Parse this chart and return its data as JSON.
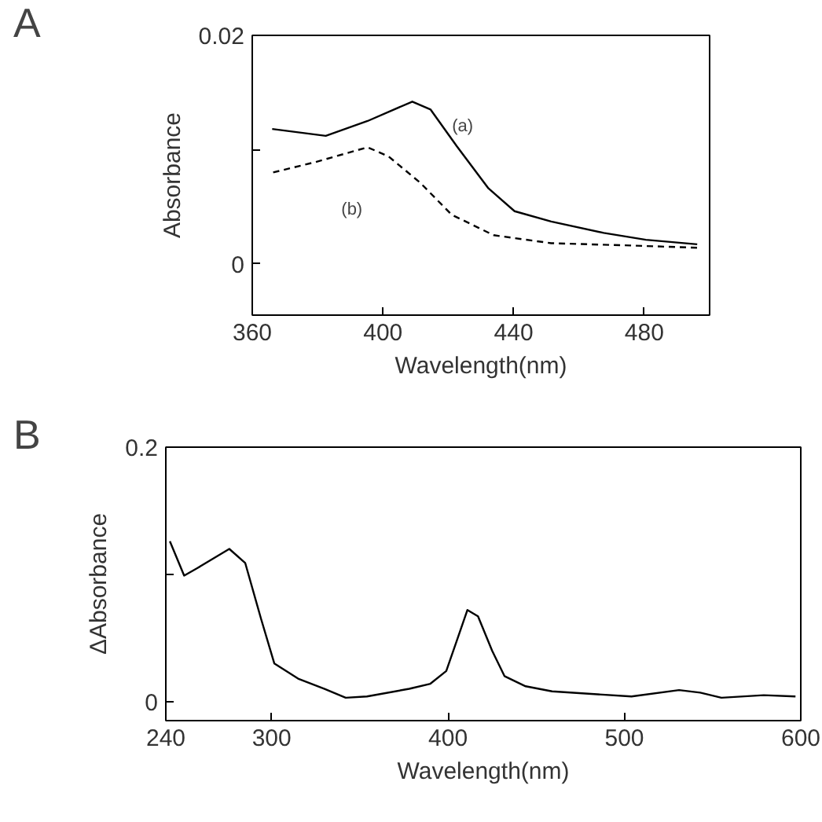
{
  "chart_data": [
    {
      "type": "line",
      "title": "A",
      "xlabel": "Wavelength(nm)",
      "ylabel": "Absorbance",
      "xlim": [
        360,
        500
      ],
      "ylim": [
        -0.0045,
        0.02
      ],
      "xticks": [
        360,
        400,
        440,
        480
      ],
      "yticks": [
        0,
        {
          "value": 0.01,
          "label": null
        },
        0.02
      ],
      "grid": false,
      "marker": "none",
      "series": [
        {
          "name": "(a)",
          "color": "#000000",
          "line_style": "solid",
          "x": [
            366.1,
            382.5,
            395.3,
            409,
            414.6,
            422.6,
            432.3,
            440.3,
            451.5,
            467.6,
            480.5,
            496.2
          ],
          "values": [
            0.0118,
            0.0112,
            0.0125,
            0.0142,
            0.0135,
            0.0103,
            0.0066,
            0.0046,
            0.0037,
            0.0027,
            0.0021,
            0.0017
          ]
        },
        {
          "name": "(b)",
          "color": "#000000",
          "line_style": "dashed",
          "x": [
            366.4,
            379.3,
            395.3,
            401.7,
            411.4,
            421,
            433.9,
            451.5,
            475.6,
            496.2
          ],
          "values": [
            0.008,
            0.0089,
            0.0102,
            0.0094,
            0.0071,
            0.0043,
            0.0025,
            0.0018,
            0.0016,
            0.0014
          ]
        }
      ]
    },
    {
      "type": "line",
      "title": "B",
      "xlabel": "Wavelength(nm)",
      "ylabel": "ΔAbsorbance",
      "xlim": [
        240,
        600
      ],
      "ylim": [
        -0.015,
        0.2
      ],
      "xticks": [
        240,
        300,
        400,
        500,
        600
      ],
      "yticks": [
        0,
        {
          "value": 0.1,
          "label": null
        },
        0.2
      ],
      "grid": false,
      "marker": "none",
      "series": [
        {
          "color": "#000000",
          "line_style": "solid",
          "x": [
            242.3,
            250.4,
            258,
            276,
            285,
            294,
            301.5,
            315,
            330,
            342,
            354,
            378,
            390,
            399,
            405,
            411,
            417,
            425,
            432,
            444,
            459,
            504,
            531,
            543,
            555,
            579,
            597
          ],
          "values": [
            0.126,
            0.099,
            0.105,
            0.12,
            0.109,
            0.065,
            0.03,
            0.018,
            0.01,
            0.003,
            0.004,
            0.01,
            0.014,
            0.024,
            0.048,
            0.072,
            0.067,
            0.04,
            0.02,
            0.012,
            0.008,
            0.004,
            0.009,
            0.007,
            0.003,
            0.005,
            0.004
          ]
        }
      ]
    }
  ]
}
